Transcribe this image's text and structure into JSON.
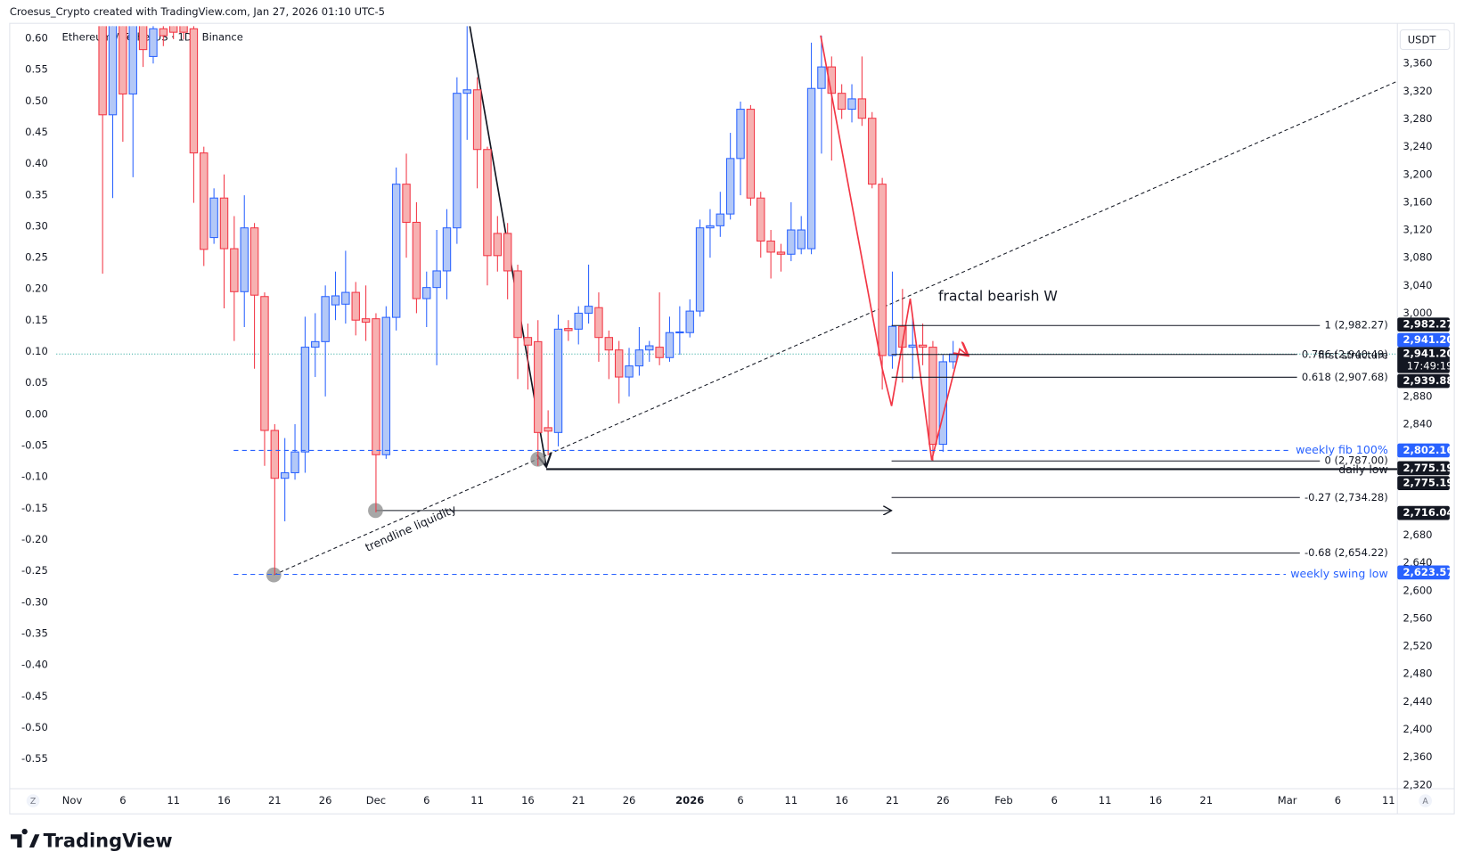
{
  "header": {
    "attribution": "Croesus_Crypto created with TradingView.com, Jan 27, 2026 01:10 UTC-5",
    "logo": "TradingView"
  },
  "chart_data": {
    "type": "candlestick",
    "title": "Ethereum / TetherUS · 1D · Binance",
    "currency": "USDT",
    "categories": [
      "Nov",
      null,
      null,
      null,
      null,
      "6",
      null,
      null,
      null,
      null,
      "11",
      null,
      null,
      null,
      null,
      "16",
      null,
      null,
      null,
      null,
      "21",
      null,
      null,
      null,
      null,
      "26",
      null,
      null,
      null,
      null,
      "Dec",
      null,
      null,
      null,
      null,
      "6",
      null,
      null,
      null,
      null,
      "11",
      null,
      null,
      null,
      null,
      "16",
      null,
      null,
      null,
      null,
      "21",
      null,
      null,
      null,
      null,
      "26",
      null,
      null,
      null,
      null,
      null,
      "2026",
      null,
      null,
      null,
      null,
      "6",
      null,
      null,
      null,
      null,
      "11",
      null,
      null,
      null,
      null,
      "16",
      null,
      null,
      null,
      null,
      "21",
      null,
      null,
      null,
      null,
      "26",
      null,
      null,
      null,
      null,
      null,
      "Feb",
      null,
      null,
      null,
      null,
      "6",
      null,
      null,
      null,
      null,
      "11",
      null,
      null,
      null,
      null,
      "16",
      null,
      null,
      null,
      null,
      "21",
      null,
      null,
      null,
      null,
      null,
      null,
      null,
      "Mar",
      null,
      null,
      null,
      null,
      "6",
      null,
      null,
      null,
      null,
      "11"
    ],
    "open": [
      null,
      null,
      null,
      3440,
      3286,
      3440,
      3316,
      3420,
      3370,
      3410,
      3420,
      3415,
      3410,
      3231,
      3109,
      3166,
      3093,
      3031,
      3123,
      3024,
      2831,
      2762,
      2770,
      2800,
      2951,
      2959,
      3012,
      3013,
      3030,
      2992,
      2992,
      2796,
      2994,
      3186,
      3131,
      3021,
      3037,
      3061,
      3123,
      3317,
      3322,
      3236,
      3115,
      3115,
      3061,
      2965,
      2959,
      2835,
      2828,
      2978,
      2977,
      3000,
      3008,
      2965,
      2947,
      2908,
      2924,
      2947,
      2951,
      2936,
      2972,
      2972,
      3003,
      3123,
      3126,
      3143,
      3223,
      3294,
      3166,
      3104,
      3088,
      3085,
      3093,
      3093,
      3324,
      3355,
      3317,
      3294,
      3309,
      3281,
      3186,
      2939,
      2981,
      2951,
      2954,
      2951,
      2811,
      2930,
      null,
      null,
      null,
      null,
      null,
      null,
      null,
      null,
      null,
      null,
      null,
      null,
      null,
      null,
      null,
      null,
      null,
      null,
      null,
      null,
      null,
      null,
      null,
      null,
      null,
      null,
      null,
      null,
      null,
      null,
      null,
      null,
      null,
      null,
      null,
      null,
      null,
      null,
      null,
      null,
      null,
      null,
      null
    ],
    "high": [
      null,
      null,
      null,
      3480,
      3470,
      3460,
      3450,
      3440,
      3430,
      3425,
      3430,
      3425,
      3420,
      3240,
      3180,
      3200,
      3140,
      3170,
      3130,
      3030,
      2840,
      2820,
      2840,
      2995,
      3000,
      3040,
      3060,
      3090,
      3045,
      3040,
      3000,
      3010,
      3210,
      3230,
      3160,
      3060,
      3120,
      3150,
      3340,
      3420,
      3340,
      3240,
      3140,
      3130,
      3070,
      2985,
      2990,
      2860,
      2998,
      2990,
      3010,
      3070,
      3030,
      2975,
      2960,
      2950,
      2980,
      2960,
      3030,
      2995,
      3010,
      3020,
      3135,
      3150,
      3175,
      3260,
      3305,
      3300,
      3175,
      3120,
      3100,
      3160,
      3140,
      3390,
      3400,
      3370,
      3330,
      3330,
      3370,
      3290,
      3195,
      3060,
      3035,
      2995,
      2985,
      2960,
      2940,
      2960,
      null,
      null,
      null,
      null,
      null,
      null,
      null,
      null,
      null,
      null,
      null,
      null,
      null,
      null,
      null,
      null,
      null,
      null,
      null,
      null,
      null,
      null,
      null,
      null,
      null,
      null,
      null,
      null,
      null,
      null,
      null,
      null,
      null,
      null,
      null,
      null,
      null,
      null,
      null,
      null,
      null,
      null,
      null
    ],
    "low": [
      null,
      null,
      null,
      3057,
      3166,
      3247,
      3196,
      3355,
      3360,
      3385,
      3395,
      3395,
      3159,
      3068,
      3100,
      3007,
      2960,
      2980,
      2920,
      2780,
      2623,
      2700,
      2760,
      2770,
      2908,
      2880,
      2990,
      2985,
      2968,
      2960,
      2713,
      2790,
      2975,
      3080,
      3000,
      2980,
      2925,
      3020,
      3100,
      3250,
      3180,
      3040,
      3060,
      3020,
      2905,
      2890,
      2780,
      2795,
      2808,
      2960,
      2955,
      2985,
      2930,
      2905,
      2870,
      2880,
      2910,
      2930,
      2925,
      2930,
      2940,
      2965,
      2995,
      3080,
      3110,
      3135,
      3170,
      3155,
      3080,
      3050,
      3060,
      3075,
      3085,
      3085,
      3230,
      3220,
      3280,
      3275,
      3270,
      3180,
      2890,
      2920,
      2900,
      2905,
      2925,
      2787,
      2800,
      2920,
      null,
      null,
      null,
      null,
      null,
      null,
      null,
      null,
      null,
      null,
      null,
      null,
      null,
      null,
      null,
      null,
      null,
      null,
      null,
      null,
      null,
      null,
      null,
      null,
      null,
      null,
      null,
      null,
      null,
      null,
      null,
      null,
      null,
      null,
      null,
      null,
      null,
      null,
      null,
      null,
      null,
      null,
      null
    ],
    "close": [
      null,
      null,
      null,
      3286,
      3430,
      3316,
      3420,
      3380,
      3410,
      3400,
      3405,
      3405,
      3231,
      3092,
      3166,
      3093,
      3031,
      3123,
      3026,
      2831,
      2762,
      2770,
      2800,
      2951,
      2959,
      3024,
      3025,
      3030,
      2990,
      2987,
      2796,
      2994,
      3186,
      3131,
      3021,
      3037,
      3061,
      3123,
      3317,
      3322,
      3236,
      3083,
      3083,
      3061,
      2965,
      2954,
      2828,
      2830,
      2977,
      2975,
      3000,
      3010,
      2965,
      2947,
      2908,
      2924,
      2947,
      2953,
      2936,
      2972,
      2973,
      3003,
      3123,
      3126,
      3143,
      3223,
      3294,
      3166,
      3104,
      3088,
      3085,
      3120,
      3120,
      3324,
      3355,
      3317,
      3294,
      3309,
      3281,
      3186,
      2939,
      2981,
      2951,
      2954,
      2951,
      2811,
      2930,
      2941.2,
      null,
      null,
      null,
      null,
      null,
      null,
      null,
      null,
      null,
      null,
      null,
      null,
      null,
      null,
      null,
      null,
      null,
      null,
      null,
      null,
      null,
      null,
      null,
      null,
      null,
      null,
      null,
      null,
      null,
      null,
      null,
      null,
      null,
      null,
      null,
      null,
      null,
      null,
      null,
      null,
      null,
      null,
      null
    ],
    "up_color": "#2962ff",
    "up_fill": "#b3c8f7",
    "down_color": "#f23645",
    "down_fill": "#f7b1b1",
    "ylim": [
      2314.6,
      3413.8
    ],
    "yticks": [
      {
        "value": 3360,
        "label": "3,360"
      },
      {
        "value": 3320,
        "label": "3,320"
      },
      {
        "value": 3280,
        "label": "3,280"
      },
      {
        "value": 3240,
        "label": "3,240"
      },
      {
        "value": 3200,
        "label": "3,200"
      },
      {
        "value": 3160,
        "label": "3,160"
      },
      {
        "value": 3120,
        "label": "3,120"
      },
      {
        "value": 3080,
        "label": "3,080"
      },
      {
        "value": 3040,
        "label": "3,040"
      },
      {
        "value": 3000,
        "label": "3,000"
      },
      {
        "value": 2880,
        "label": "2,880"
      },
      {
        "value": 2840,
        "label": "2,840"
      },
      {
        "value": 2680,
        "label": "2,680"
      },
      {
        "value": 2640,
        "label": "2,640"
      },
      {
        "value": 2600,
        "label": "2,600"
      },
      {
        "value": 2560,
        "label": "2,560"
      },
      {
        "value": 2520,
        "label": "2,520"
      },
      {
        "value": 2480,
        "label": "2,480"
      },
      {
        "value": 2440,
        "label": "2,440"
      },
      {
        "value": 2400,
        "label": "2,400"
      },
      {
        "value": 2360,
        "label": "2,360"
      },
      {
        "value": 2320,
        "label": "2,320"
      }
    ],
    "y2lim": [
      -0.5975,
      0.6194
    ],
    "y2ticks": [
      {
        "value": 0.6,
        "label": "0.60"
      },
      {
        "value": 0.55,
        "label": "0.55"
      },
      {
        "value": 0.5,
        "label": "0.50"
      },
      {
        "value": 0.45,
        "label": "0.45"
      },
      {
        "value": 0.4,
        "label": "0.40"
      },
      {
        "value": 0.35,
        "label": "0.35"
      },
      {
        "value": 0.3,
        "label": "0.30"
      },
      {
        "value": 0.25,
        "label": "0.25"
      },
      {
        "value": 0.2,
        "label": "0.20"
      },
      {
        "value": 0.15,
        "label": "0.15"
      },
      {
        "value": 0.1,
        "label": "0.10"
      },
      {
        "value": 0.05,
        "label": "0.05"
      },
      {
        "value": 0,
        "label": "0.00"
      },
      {
        "value": -0.05,
        "label": "-0.05"
      },
      {
        "value": -0.1,
        "label": "-0.10"
      },
      {
        "value": -0.15,
        "label": "-0.15"
      },
      {
        "value": -0.2,
        "label": "-0.20"
      },
      {
        "value": -0.25,
        "label": "-0.25"
      },
      {
        "value": -0.3,
        "label": "-0.30"
      },
      {
        "value": -0.35,
        "label": "-0.35"
      },
      {
        "value": -0.4,
        "label": "-0.40"
      },
      {
        "value": -0.45,
        "label": "-0.45"
      },
      {
        "value": -0.5,
        "label": "-0.50"
      },
      {
        "value": -0.55,
        "label": "-0.55"
      }
    ],
    "price_labels": [
      {
        "value": 2982.27,
        "label": "2,982.27",
        "color": "#131722"
      },
      {
        "value": 2941.2,
        "label": "2,941.20",
        "color": "#2962ff"
      },
      {
        "value": 2941.2,
        "label": "2,941.20",
        "color": "#131722"
      },
      {
        "value": 2939.88,
        "label": "2,939.88",
        "color": "#131722"
      },
      {
        "value": 2802.16,
        "label": "2,802.16",
        "color": "#2962ff"
      },
      {
        "value": 2775.19,
        "label": "2,775.19",
        "color": "#131722"
      },
      {
        "value": 2775.19,
        "label": "2,775.19",
        "color": "#131722"
      },
      {
        "value": 2716.04,
        "label": "2,716.04",
        "color": "#131722"
      },
      {
        "value": 2623.57,
        "label": "2,623.57",
        "color": "#2962ff"
      }
    ],
    "countdown": "17:49:19",
    "fib_levels": [
      {
        "value": 2982.27,
        "label": "1 (2,982.27)"
      },
      {
        "value": 2940.49,
        "label": "0.786 (2,940.49)"
      },
      {
        "value": 2907.68,
        "label": "0.618 (2,907.68)"
      },
      {
        "value": 2787,
        "label": "0 (2,787.00)"
      },
      {
        "value": 2734.28,
        "label": "-0.27 (2,734.28)"
      },
      {
        "value": 2654.22,
        "label": "-0.68 (2,654.22)"
      }
    ],
    "levels": [
      {
        "value": 2802.16,
        "label": "weekly fib 100%",
        "color": "#2962ff"
      },
      {
        "value": 2775.19,
        "label": "daily low",
        "color": "#131722"
      },
      {
        "value": 2623.57,
        "label": "weekly swing low",
        "color": "#2962ff"
      }
    ],
    "annotations": [
      "fractal bearish W",
      "trendline liquidity",
      "first structure"
    ],
    "corner_labels": [
      "Z",
      "A"
    ]
  }
}
